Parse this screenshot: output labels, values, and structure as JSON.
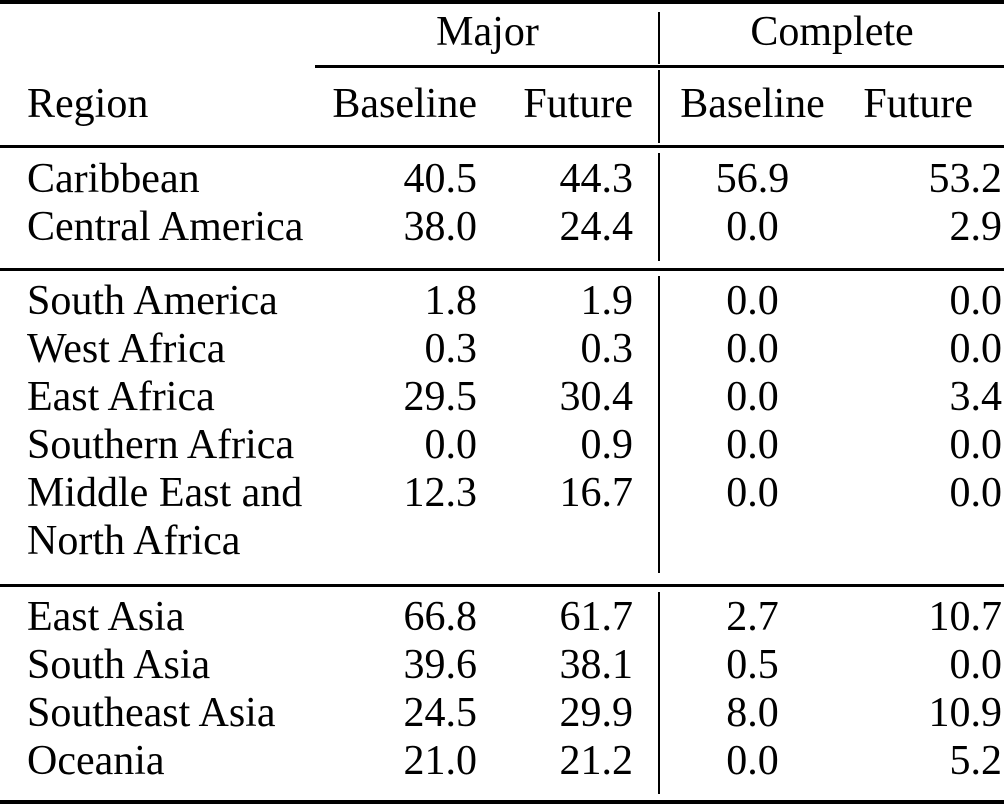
{
  "table": {
    "colors": {
      "text": "#000000",
      "rule": "#000000",
      "background": "#ffffff"
    },
    "column_groups": [
      {
        "label": "Major"
      },
      {
        "label": "Complete"
      }
    ],
    "headers": {
      "region": "Region",
      "major_baseline": "Baseline",
      "major_future": "Future",
      "complete_baseline": "Baseline",
      "complete_future": "Future"
    },
    "sections": [
      {
        "rows": [
          {
            "region": "Caribbean",
            "values": [
              "40.5",
              "44.3",
              "56.9",
              "53.2"
            ]
          },
          {
            "region": "Central America",
            "values": [
              "38.0",
              "24.4",
              "0.0",
              "2.9"
            ]
          }
        ]
      },
      {
        "rows": [
          {
            "region": "South America",
            "values": [
              "1.8",
              "1.9",
              "0.0",
              "0.0"
            ]
          },
          {
            "region": "West Africa",
            "values": [
              "0.3",
              "0.3",
              "0.0",
              "0.0"
            ]
          },
          {
            "region": "East Africa",
            "values": [
              "29.5",
              "30.4",
              "0.0",
              "3.4"
            ]
          },
          {
            "region": "Southern Africa",
            "values": [
              "0.0",
              "0.9",
              "0.0",
              "0.0"
            ]
          },
          {
            "region": "Middle East and\nNorth Africa",
            "values": [
              "12.3",
              "16.7",
              "0.0",
              "0.0"
            ]
          }
        ]
      },
      {
        "rows": [
          {
            "region": "East Asia",
            "values": [
              "66.8",
              "61.7",
              "2.7",
              "10.7"
            ]
          },
          {
            "region": "South Asia",
            "values": [
              "39.6",
              "38.1",
              "0.5",
              "0.0"
            ]
          },
          {
            "region": "Southeast Asia",
            "values": [
              "24.5",
              "29.9",
              "8.0",
              "10.9"
            ]
          },
          {
            "region": "Oceania",
            "values": [
              "21.0",
              "21.2",
              "0.0",
              "5.2"
            ]
          }
        ]
      }
    ]
  }
}
